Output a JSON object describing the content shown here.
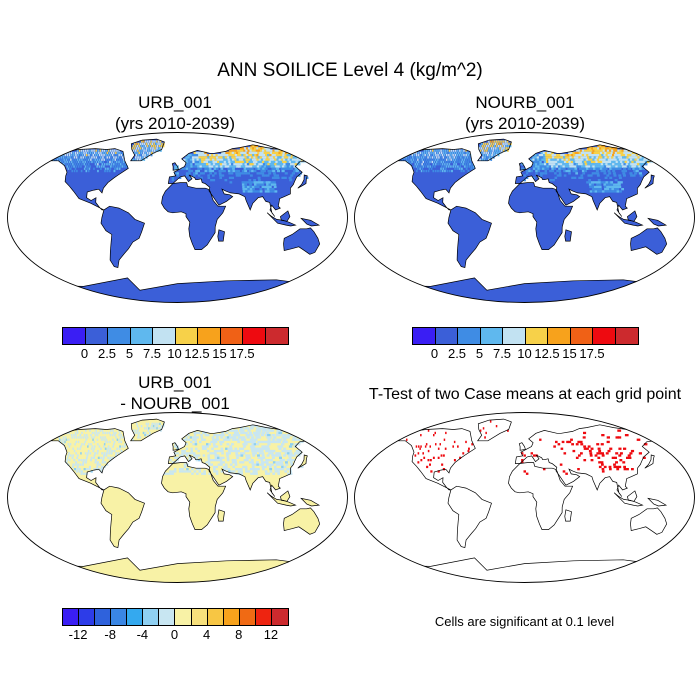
{
  "title": "ANN SOILICE Level 4 (kg/m^2)",
  "panels": [
    {
      "id": "urb",
      "title_line1": "URB_001",
      "title_line2": "(yrs 2010-2039)"
    },
    {
      "id": "nourb",
      "title_line1": "NOURB_001",
      "title_line2": "(yrs 2010-2039)"
    },
    {
      "id": "diff",
      "title_line1": "URB_001",
      "title_line2": "- NOURB_001"
    },
    {
      "id": "ttest",
      "title_line1": "T-Test of two Case means at each grid point",
      "title_line2": ""
    }
  ],
  "colorbar_top": {
    "colors": [
      "#3a1ef4",
      "#3b5fd8",
      "#3f8ce4",
      "#5fb8ee",
      "#c2e2f2",
      "#f7d149",
      "#f7a21c",
      "#f06116",
      "#ee0a10",
      "#cc2a2e"
    ],
    "labels": [
      "0",
      "2.5",
      "5",
      "7.5",
      "10",
      "12.5",
      "15",
      "17.5"
    ]
  },
  "colorbar_diff": {
    "colors": [
      "#3a1ef4",
      "#2d3ce8",
      "#2f62dc",
      "#3a86e4",
      "#34a9ef",
      "#8fd0f2",
      "#c8e6f2",
      "#f8f2a6",
      "#f7e07c",
      "#f7c644",
      "#f7a21c",
      "#f06a14",
      "#ee2410",
      "#cc2a2e"
    ],
    "labels": [
      "-12",
      "-8",
      "-4",
      "0",
      "4",
      "8",
      "12"
    ]
  },
  "ttest_note": "Cells are significant at 0.1 level",
  "map_colors": {
    "ocean": "#ffffff",
    "land_base_top": "#3b5fd8",
    "land_base_diff": "#f8f2a6",
    "signif": "#ee0a10",
    "outline": "#000000"
  }
}
